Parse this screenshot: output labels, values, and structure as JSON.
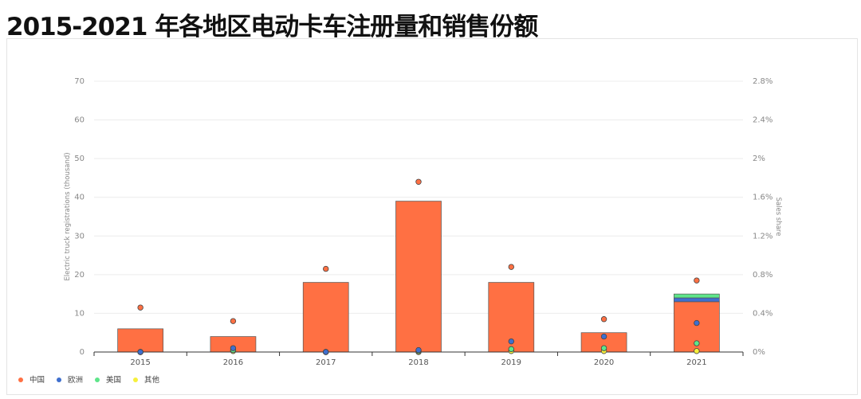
{
  "page": {
    "title": "2015-2021 年各地区电动卡车注册量和销售份额"
  },
  "colors": {
    "china": "#ff7043",
    "europe": "#3f6fce",
    "usa": "#5ee58a",
    "other": "#f6f03c",
    "grid": "#ececec",
    "axis": "#333333"
  },
  "chart_data": {
    "type": "bar",
    "title": "",
    "categories": [
      "2015",
      "2016",
      "2017",
      "2018",
      "2019",
      "2020",
      "2021"
    ],
    "ylabel": "Electric truck registrations (thousand)",
    "y2label": "Sales share",
    "ylim": [
      0,
      70
    ],
    "y2lim": [
      0,
      2.8
    ],
    "yticks": [
      "0",
      "10",
      "20",
      "30",
      "40",
      "50",
      "60",
      "70"
    ],
    "y2ticks": [
      "0%",
      "0.4%",
      "0.8%",
      "1.2%",
      "1.6%",
      "2%",
      "2.4%",
      "2.8%"
    ],
    "grid": true,
    "legend_position": "bottom-left",
    "bar_series": [
      {
        "name": "中国",
        "values": [
          6,
          4,
          18,
          39,
          18,
          5,
          13
        ]
      },
      {
        "name": "欧洲",
        "values": [
          0,
          0,
          0,
          0,
          0,
          0,
          1
        ]
      },
      {
        "name": "美国",
        "values": [
          0,
          0,
          0,
          0,
          0,
          0,
          1
        ]
      },
      {
        "name": "其他",
        "values": [
          0,
          0,
          0,
          0,
          0,
          0,
          0
        ]
      }
    ],
    "share_series": [
      {
        "name": "中国",
        "values": [
          0.46,
          0.32,
          0.86,
          1.76,
          0.88,
          0.34,
          0.74
        ]
      },
      {
        "name": "欧洲",
        "values": [
          0.0,
          0.04,
          0.0,
          0.02,
          0.11,
          0.16,
          0.3
        ]
      },
      {
        "name": "美国",
        "values": [
          0.0,
          0.02,
          0.0,
          0.01,
          0.03,
          0.04,
          0.09
        ]
      },
      {
        "name": "其他",
        "values": [
          0.0,
          0.01,
          0.0,
          0.0,
          0.01,
          0.01,
          0.01
        ]
      }
    ],
    "legend": [
      "中国",
      "欧洲",
      "美国",
      "其他"
    ]
  }
}
